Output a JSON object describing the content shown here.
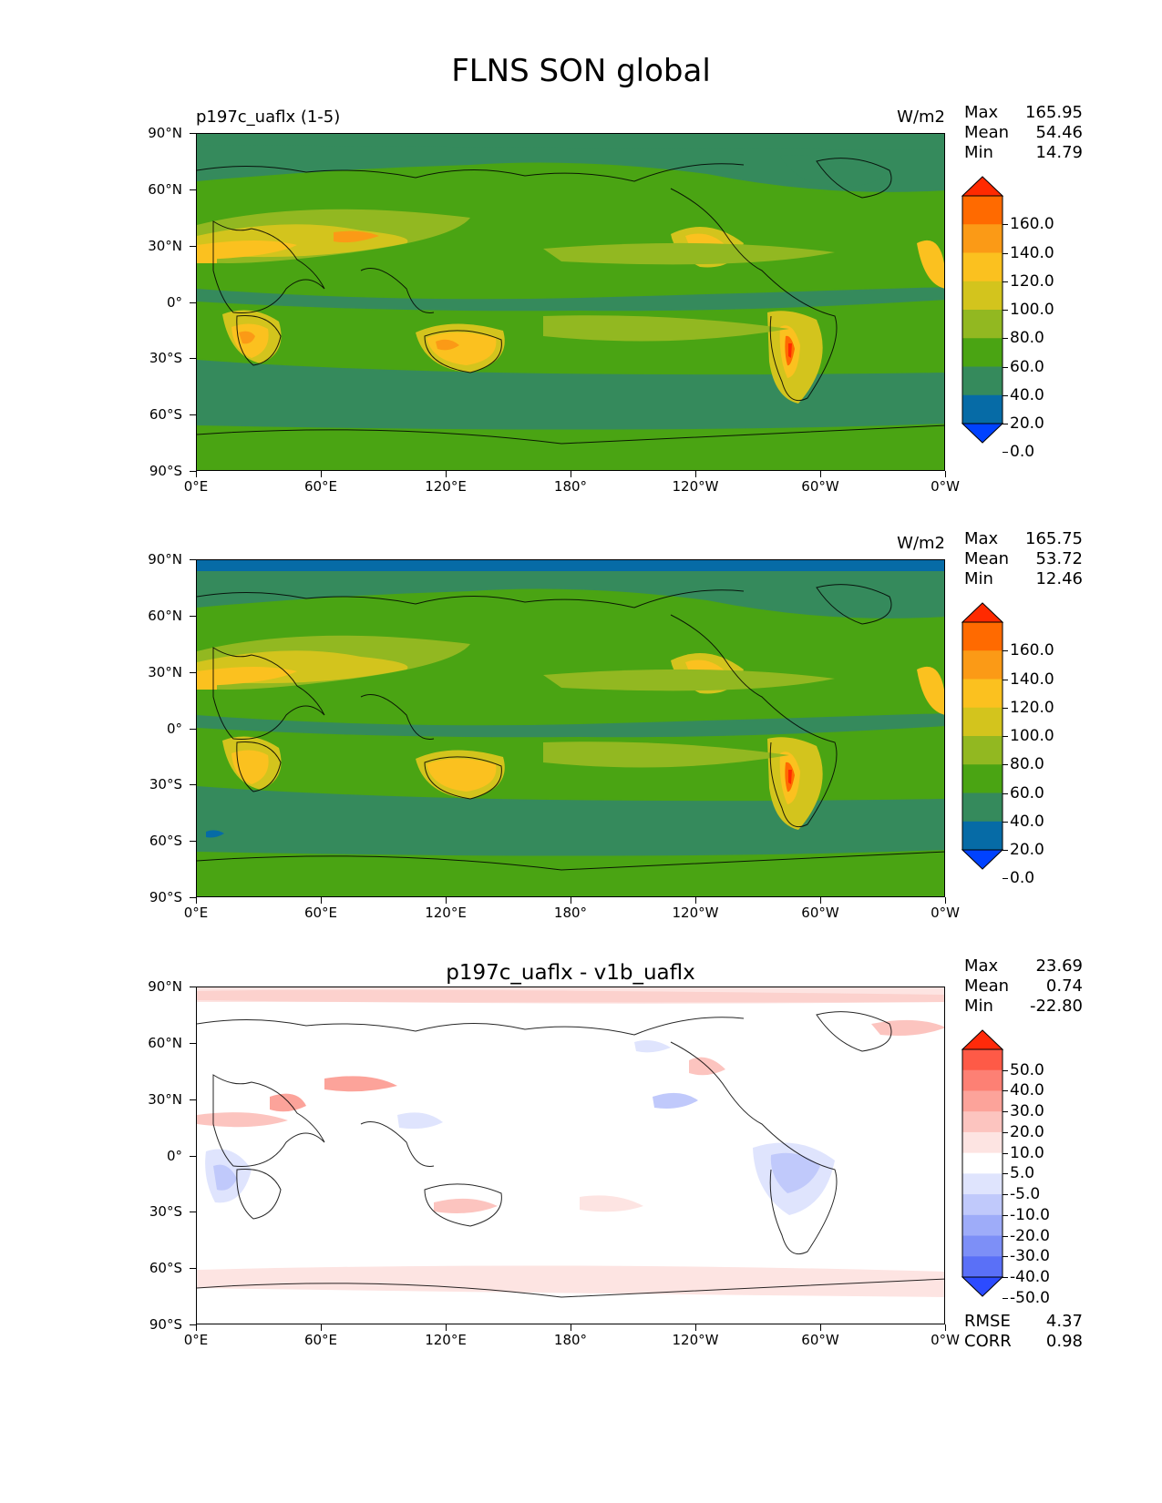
{
  "figure": {
    "title": "FLNS SON global",
    "x_tick_labels": [
      "0°E",
      "60°E",
      "120°E",
      "180°",
      "120°W",
      "60°W",
      "0°W"
    ],
    "y_tick_labels": [
      "90°N",
      "60°N",
      "30°N",
      "0°",
      "30°S",
      "60°S",
      "90°S"
    ],
    "longitudes": [
      0,
      60,
      120,
      180,
      240,
      300,
      360
    ],
    "latitudes": [
      90,
      60,
      30,
      0,
      -30,
      -60,
      -90
    ]
  },
  "panels": [
    {
      "title": "p197c_uaflx (1-5)",
      "units": "W/m2",
      "max_label": "Max",
      "max": "165.95",
      "mean_label": "Mean",
      "mean": "54.46",
      "min_label": "Min",
      "min": "14.79",
      "colorbar": {
        "labels": [
          "160.0",
          "140.0",
          "120.0",
          "100.0",
          "80.0",
          "60.0",
          "40.0",
          "20.0",
          "0.0"
        ],
        "colors": [
          "#ff2a00",
          "#ff6a00",
          "#fb9a16",
          "#fbc11f",
          "#d3c41d",
          "#92b821",
          "#4aa413",
          "#358a5c",
          "#066ba6",
          "#0042ff"
        ]
      }
    },
    {
      "title": "",
      "units": "W/m2",
      "max_label": "Max",
      "max": "165.75",
      "mean_label": "Mean",
      "mean": "53.72",
      "min_label": "Min",
      "min": "12.46",
      "colorbar": {
        "labels": [
          "160.0",
          "140.0",
          "120.0",
          "100.0",
          "80.0",
          "60.0",
          "40.0",
          "20.0",
          "0.0"
        ],
        "colors": [
          "#ff2a00",
          "#ff6a00",
          "#fb9a16",
          "#fbc11f",
          "#d3c41d",
          "#92b821",
          "#4aa413",
          "#358a5c",
          "#066ba6",
          "#0042ff"
        ]
      }
    },
    {
      "title": "p197c_uaflx - v1b_uaflx",
      "units": "",
      "max_label": "Max",
      "max": "23.69",
      "mean_label": "Mean",
      "mean": "0.74",
      "min_label": "Min",
      "min": "-22.80",
      "rmse_label": "RMSE",
      "rmse": "4.37",
      "corr_label": "CORR",
      "corr": "0.98",
      "colorbar": {
        "labels": [
          "50.0",
          "40.0",
          "30.0",
          "20.0",
          "10.0",
          "5.0",
          "-5.0",
          "-10.0",
          "-20.0",
          "-30.0",
          "-40.0",
          "-50.0"
        ],
        "colors": [
          "#ff2a0a",
          "#fe5a47",
          "#fd8074",
          "#fca39a",
          "#fcc4bf",
          "#fde4e2",
          "#ffffff",
          "#dfe4fd",
          "#c0c9fb",
          "#9eacf9",
          "#7d8ff7",
          "#5a70f7",
          "#2c4bff"
        ]
      }
    }
  ]
}
